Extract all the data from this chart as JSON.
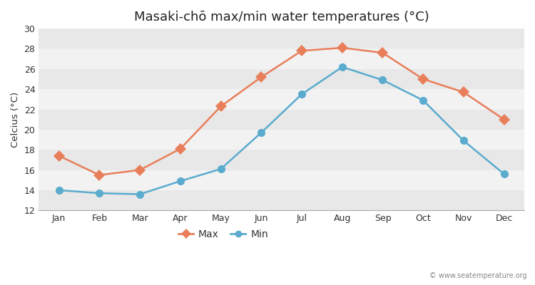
{
  "title": "Masaki-chō max/min water temperatures (°C)",
  "ylabel": "Celcius (°C)",
  "months": [
    "Jan",
    "Feb",
    "Mar",
    "Apr",
    "May",
    "Jun",
    "Jul",
    "Aug",
    "Sep",
    "Oct",
    "Nov",
    "Dec"
  ],
  "max_temps": [
    17.4,
    15.5,
    16.0,
    18.1,
    22.3,
    25.2,
    27.8,
    28.1,
    27.6,
    25.0,
    23.7,
    21.0
  ],
  "min_temps": [
    14.0,
    13.7,
    13.6,
    14.9,
    16.1,
    19.7,
    23.5,
    26.2,
    24.9,
    22.9,
    18.9,
    15.6
  ],
  "max_color": "#e87e5a",
  "min_color": "#5aabce",
  "fig_bg_color": "#ffffff",
  "plot_bg_color": "#e8e8e8",
  "band_color_light": "#f0f0f0",
  "band_color_dark": "#e0e0e0",
  "ylim": [
    12,
    30
  ],
  "yticks": [
    12,
    14,
    16,
    18,
    20,
    22,
    24,
    26,
    28,
    30
  ],
  "watermark": "© www.seatemperature.org",
  "legend_max": "Max",
  "legend_min": "Min",
  "title_fontsize": 13,
  "label_fontsize": 9.5,
  "tick_fontsize": 9,
  "max_marker": "D",
  "min_marker": "o",
  "marker_size_max": 8,
  "marker_size_min": 8,
  "line_width": 1.8
}
